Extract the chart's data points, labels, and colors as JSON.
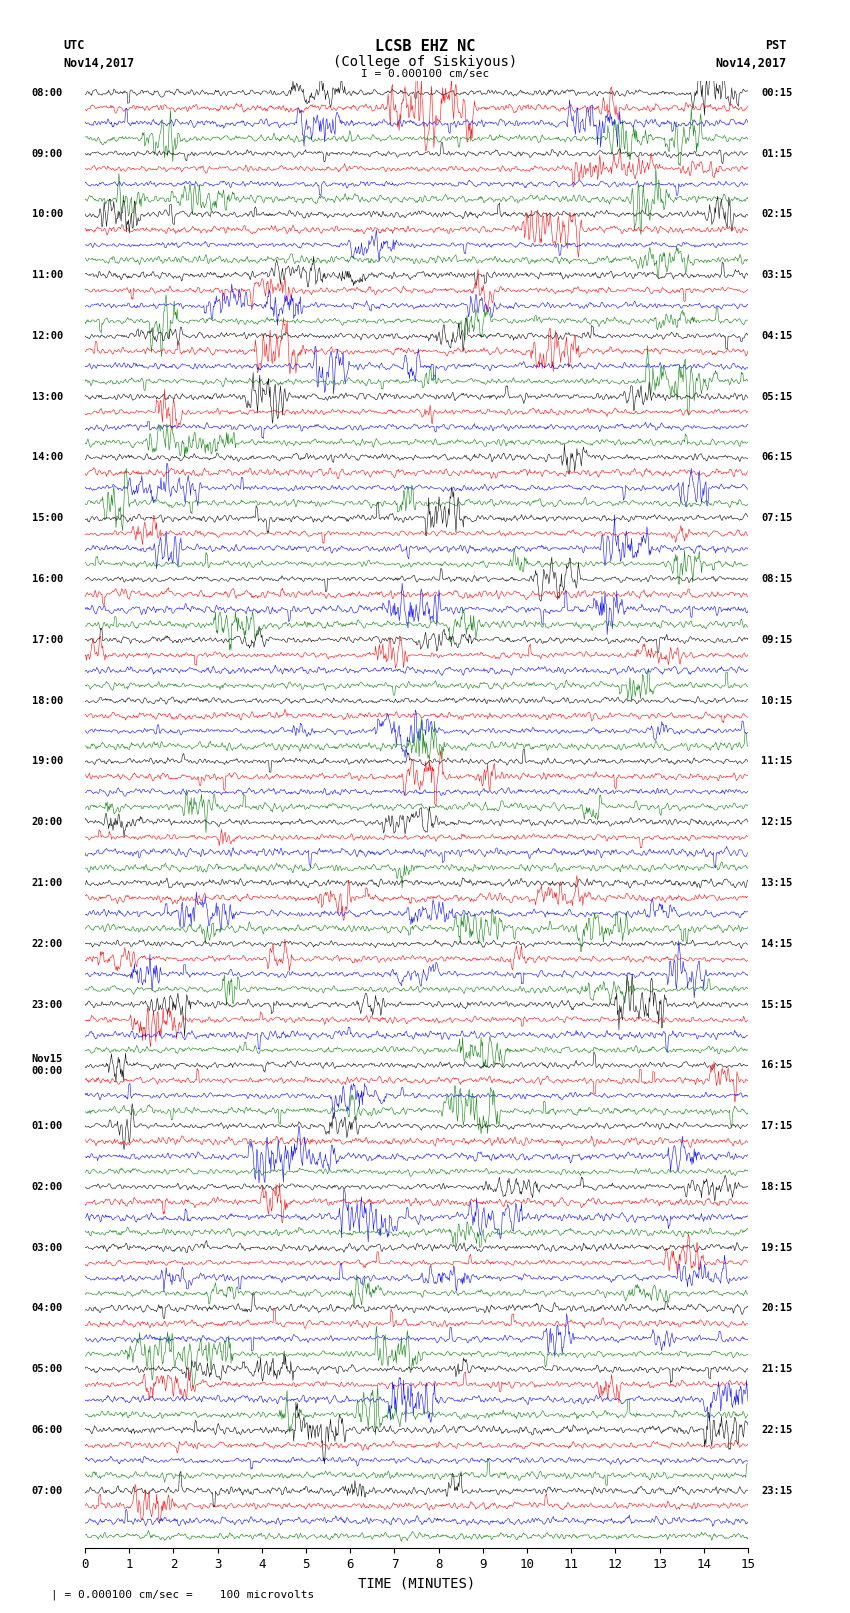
{
  "title_line1": "LCSB EHZ NC",
  "title_line2": "(College of Siskiyous)",
  "scale_text": "I = 0.000100 cm/sec",
  "left_header": "UTC\nNov14,2017",
  "right_header": "PST\nNov14,2017",
  "bottom_note": "| = 0.000100 cm/sec =    100 microvolts",
  "xlabel": "TIME (MINUTES)",
  "xmin": 0,
  "xmax": 15,
  "xticks": [
    0,
    1,
    2,
    3,
    4,
    5,
    6,
    7,
    8,
    9,
    10,
    11,
    12,
    13,
    14,
    15
  ],
  "colors": [
    "black",
    "red",
    "blue",
    "green"
  ],
  "n_rows": 96,
  "n_cols_per_row": 900,
  "amplitude": 0.35,
  "bg_color": "white",
  "left_times": [
    "08:00",
    "",
    "",
    "",
    "09:00",
    "",
    "",
    "",
    "10:00",
    "",
    "",
    "",
    "11:00",
    "",
    "",
    "",
    "12:00",
    "",
    "",
    "",
    "13:00",
    "",
    "",
    "",
    "14:00",
    "",
    "",
    "",
    "15:00",
    "",
    "",
    "",
    "16:00",
    "",
    "",
    "",
    "17:00",
    "",
    "",
    "",
    "18:00",
    "",
    "",
    "",
    "19:00",
    "",
    "",
    "",
    "20:00",
    "",
    "",
    "",
    "21:00",
    "",
    "",
    "",
    "22:00",
    "",
    "",
    "",
    "23:00",
    "",
    "",
    "",
    "Nov15\n00:00",
    "",
    "",
    "",
    "01:00",
    "",
    "",
    "",
    "02:00",
    "",
    "",
    "",
    "03:00",
    "",
    "",
    "",
    "04:00",
    "",
    "",
    "",
    "05:00",
    "",
    "",
    "",
    "06:00",
    "",
    "",
    "",
    "07:00",
    "",
    "",
    ""
  ],
  "right_times": [
    "00:15",
    "",
    "",
    "",
    "01:15",
    "",
    "",
    "",
    "02:15",
    "",
    "",
    "",
    "03:15",
    "",
    "",
    "",
    "04:15",
    "",
    "",
    "",
    "05:15",
    "",
    "",
    "",
    "06:15",
    "",
    "",
    "",
    "07:15",
    "",
    "",
    "",
    "08:15",
    "",
    "",
    "",
    "09:15",
    "",
    "",
    "",
    "10:15",
    "",
    "",
    "",
    "11:15",
    "",
    "",
    "",
    "12:15",
    "",
    "",
    "",
    "13:15",
    "",
    "",
    "",
    "14:15",
    "",
    "",
    "",
    "15:15",
    "",
    "",
    "",
    "16:15",
    "",
    "",
    "",
    "17:15",
    "",
    "",
    "",
    "18:15",
    "",
    "",
    "",
    "19:15",
    "",
    "",
    "",
    "20:15",
    "",
    "",
    "",
    "21:15",
    "",
    "",
    "",
    "22:15",
    "",
    "",
    "",
    "23:15",
    "",
    "",
    ""
  ],
  "seed": 42
}
